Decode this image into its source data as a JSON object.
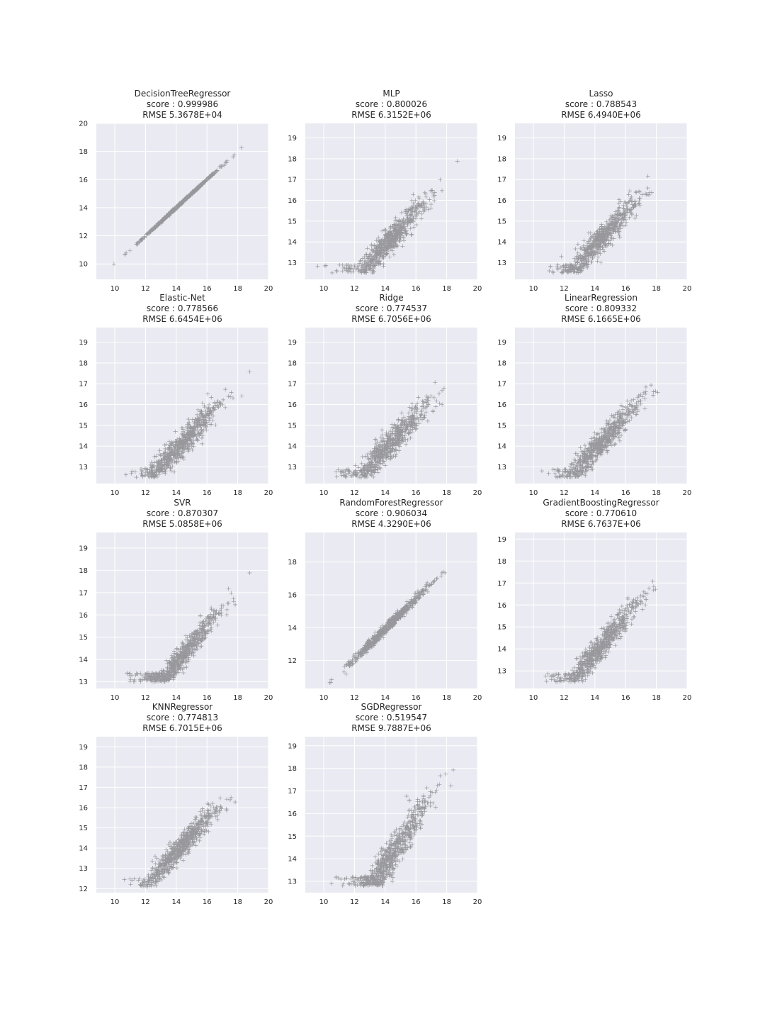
{
  "chart_data": [
    {
      "type": "scatter",
      "title": [
        "DecisionTreeRegressor",
        "score : 0.999986",
        "RMSE 5.3678E+04"
      ],
      "xlim": [
        8.8,
        20.0
      ],
      "ylim": [
        8.9,
        20.0
      ],
      "xticks": [
        10,
        12,
        14,
        16,
        18,
        20
      ],
      "yticks": [
        10,
        12,
        14,
        16,
        18,
        20
      ],
      "scatter_params": {
        "a": 1.0,
        "b": 0.0,
        "noise": 0.04
      }
    },
    {
      "type": "scatter",
      "title": [
        "MLP",
        "score : 0.800026",
        "RMSE 6.3152E+06"
      ],
      "xlim": [
        8.8,
        20.0
      ],
      "ylim": [
        12.2,
        19.7
      ],
      "xticks": [
        10,
        12,
        14,
        16,
        18,
        20
      ],
      "yticks": [
        13,
        14,
        15,
        16,
        17,
        18,
        19
      ],
      "scatter_params": {
        "a": 0.78,
        "b": 2.9,
        "noise": 0.32
      }
    },
    {
      "type": "scatter",
      "title": [
        "Lasso",
        "score : 0.788543",
        "RMSE 6.4940E+06"
      ],
      "xlim": [
        8.8,
        20.0
      ],
      "ylim": [
        12.2,
        19.7
      ],
      "xticks": [
        10,
        12,
        14,
        16,
        18,
        20
      ],
      "yticks": [
        13,
        14,
        15,
        16,
        17,
        18,
        19
      ],
      "scatter_params": {
        "a": 0.78,
        "b": 2.9,
        "noise": 0.33
      }
    },
    {
      "type": "scatter",
      "title": [
        "Elastic-Net",
        "score : 0.778566",
        "RMSE 6.6454E+06"
      ],
      "xlim": [
        8.8,
        20.0
      ],
      "ylim": [
        12.2,
        19.7
      ],
      "xticks": [
        10,
        12,
        14,
        16,
        18,
        20
      ],
      "yticks": [
        13,
        14,
        15,
        16,
        17,
        18,
        19
      ],
      "scatter_params": {
        "a": 0.78,
        "b": 2.9,
        "noise": 0.33
      }
    },
    {
      "type": "scatter",
      "title": [
        "Ridge",
        "score : 0.774537",
        "RMSE 6.7056E+06"
      ],
      "xlim": [
        8.8,
        20.0
      ],
      "ylim": [
        12.2,
        19.7
      ],
      "xticks": [
        10,
        12,
        14,
        16,
        18,
        20
      ],
      "yticks": [
        13,
        14,
        15,
        16,
        17,
        18,
        19
      ],
      "scatter_params": {
        "a": 0.78,
        "b": 2.9,
        "noise": 0.34
      }
    },
    {
      "type": "scatter",
      "title": [
        "LinearRegression",
        "score : 0.809332",
        "RMSE 6.1665E+06"
      ],
      "xlim": [
        8.8,
        20.0
      ],
      "ylim": [
        12.2,
        19.7
      ],
      "xticks": [
        10,
        12,
        14,
        16,
        18,
        20
      ],
      "yticks": [
        13,
        14,
        15,
        16,
        17,
        18,
        19
      ],
      "scatter_params": {
        "a": 0.78,
        "b": 2.9,
        "noise": 0.32
      }
    },
    {
      "type": "scatter",
      "title": [
        "SVR",
        "score : 0.870307",
        "RMSE 5.0858E+06"
      ],
      "xlim": [
        8.8,
        20.0
      ],
      "ylim": [
        12.7,
        19.7
      ],
      "xticks": [
        10,
        12,
        14,
        16,
        18,
        20
      ],
      "yticks": [
        13,
        14,
        15,
        16,
        17,
        18,
        19
      ],
      "scatter_params": {
        "a": 0.85,
        "b": 1.9,
        "noise": 0.28
      }
    },
    {
      "type": "scatter",
      "title": [
        "RandomForestRegressor",
        "score : 0.906034",
        "RMSE 4.3290E+06"
      ],
      "xlim": [
        8.8,
        20.0
      ],
      "ylim": [
        10.3,
        19.8
      ],
      "xticks": [
        10,
        12,
        14,
        16,
        18,
        20
      ],
      "yticks": [
        12,
        14,
        16,
        18
      ],
      "scatter_params": {
        "a": 0.93,
        "b": 0.9,
        "noise": 0.14
      }
    },
    {
      "type": "scatter",
      "title": [
        "GradientBoostingRegressor",
        "score : 0.770610",
        "RMSE 6.7637E+06"
      ],
      "xlim": [
        8.8,
        20.0
      ],
      "ylim": [
        12.2,
        19.3
      ],
      "xticks": [
        10,
        12,
        14,
        16,
        18,
        20
      ],
      "yticks": [
        13,
        14,
        15,
        16,
        17,
        18,
        19
      ],
      "scatter_params": {
        "a": 0.8,
        "b": 2.6,
        "noise": 0.3
      }
    },
    {
      "type": "scatter",
      "title": [
        "KNNRegressor",
        "score : 0.774813",
        "RMSE 6.7015E+06"
      ],
      "xlim": [
        8.8,
        20.0
      ],
      "ylim": [
        11.8,
        19.5
      ],
      "xticks": [
        10,
        12,
        14,
        16,
        18,
        20
      ],
      "yticks": [
        12,
        13,
        14,
        15,
        16,
        17,
        18,
        19
      ],
      "scatter_params": {
        "a": 0.82,
        "b": 2.3,
        "noise": 0.3
      }
    },
    {
      "type": "scatter",
      "title": [
        "SGDRegressor",
        "score : 0.519547",
        "RMSE 9.7887E+06"
      ],
      "xlim": [
        8.8,
        20.0
      ],
      "ylim": [
        12.5,
        19.4
      ],
      "xticks": [
        10,
        12,
        14,
        16,
        18,
        20
      ],
      "yticks": [
        13,
        14,
        15,
        16,
        17,
        18,
        19
      ],
      "scatter_params": {
        "a": 1.05,
        "b": -1.0,
        "noise": 0.42
      }
    }
  ],
  "style": {
    "axes_facecolor": "#eaeaf2",
    "grid_color": "#ffffff",
    "marker_color": "#333333",
    "text_color": "#262626"
  }
}
